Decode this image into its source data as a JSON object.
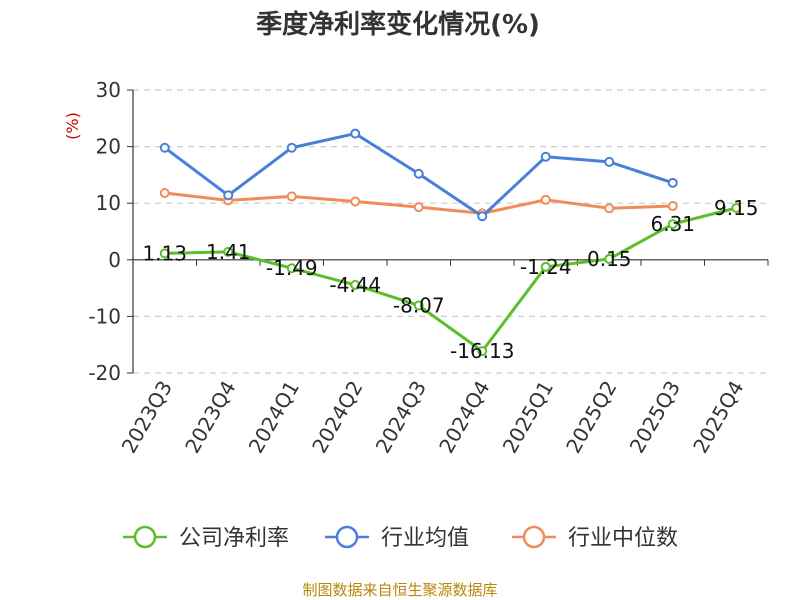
{
  "chart_data": {
    "type": "line",
    "title": "季度净利率变化情况(%)",
    "ylabel": "(%)",
    "xlabel": "",
    "ylim": [
      -20,
      30
    ],
    "yticks": [
      30,
      20,
      10,
      0,
      -10,
      -20
    ],
    "grid": true,
    "legend_position": "bottom",
    "categories": [
      "2023Q3",
      "2023Q4",
      "2024Q1",
      "2024Q2",
      "2024Q3",
      "2024Q4",
      "2025Q1",
      "2025Q2",
      "2025Q3",
      "2025Q4"
    ],
    "series": [
      {
        "name": "公司净利率",
        "color": "#5cbf2a",
        "values": [
          1.13,
          1.41,
          -1.49,
          -4.44,
          -8.07,
          -16.13,
          -1.24,
          0.15,
          6.31,
          9.15
        ],
        "labels": [
          "1.13",
          "1.41",
          "-1.49",
          "-4.44",
          "-8.07",
          "-16.13",
          "-1.24",
          "0.15",
          "6.31",
          "9.15"
        ]
      },
      {
        "name": "行业均值",
        "color": "#4a7fd8",
        "values": [
          19.8,
          11.4,
          19.8,
          22.3,
          15.2,
          7.7,
          18.2,
          17.3,
          13.6,
          null
        ]
      },
      {
        "name": "行业中位数",
        "color": "#f08c5a",
        "values": [
          11.8,
          10.5,
          11.2,
          10.3,
          9.3,
          8.2,
          10.6,
          9.1,
          9.5,
          null
        ]
      }
    ]
  },
  "source_text": "制图数据来自恒生聚源数据库"
}
